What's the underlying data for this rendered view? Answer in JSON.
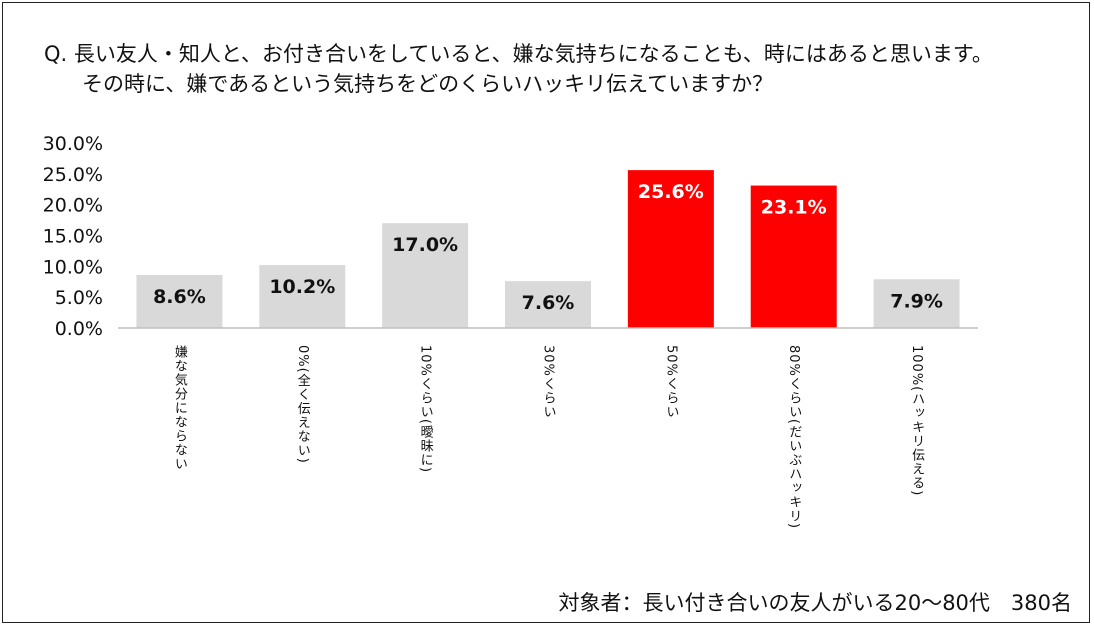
{
  "question": {
    "line1": "Q. 長い友人・知人と、お付き合いをしていると、嫌な気持ちになることも、時にはあると思います。",
    "line2": "その時に、嫌であるという気持ちをどのくらいハッキリ伝えていますか？"
  },
  "footnote": "対象者：長い付き合いの友人がいる20～80代　380名",
  "chart_data": {
    "type": "bar",
    "title": "",
    "xlabel": "",
    "ylabel": "",
    "ylim": [
      0,
      30
    ],
    "yticks": [
      "0.0%",
      "5.0%",
      "10.0%",
      "15.0%",
      "20.0%",
      "25.0%",
      "30.0%"
    ],
    "grid": false,
    "legend": "none",
    "categories": [
      "嫌な気分にならない",
      "0%(全く伝えない)",
      "10%くらい(曖昧に)",
      "30%くらい",
      "50%くらい",
      "80%くらい(だいぶハッキリ)",
      "100%(ハッキリ伝える)"
    ],
    "values": [
      8.6,
      10.2,
      17.0,
      7.6,
      25.6,
      23.1,
      7.9
    ],
    "data_labels": [
      "8.6%",
      "10.2%",
      "17.0%",
      "7.6%",
      "25.6%",
      "23.1%",
      "7.9%"
    ],
    "bar_colors": [
      "#d9d9d9",
      "#d9d9d9",
      "#d9d9d9",
      "#d9d9d9",
      "#ff0000",
      "#ff0000",
      "#d9d9d9"
    ],
    "label_colors": [
      "#111111",
      "#111111",
      "#111111",
      "#111111",
      "#ffffff",
      "#ffffff",
      "#111111"
    ]
  }
}
